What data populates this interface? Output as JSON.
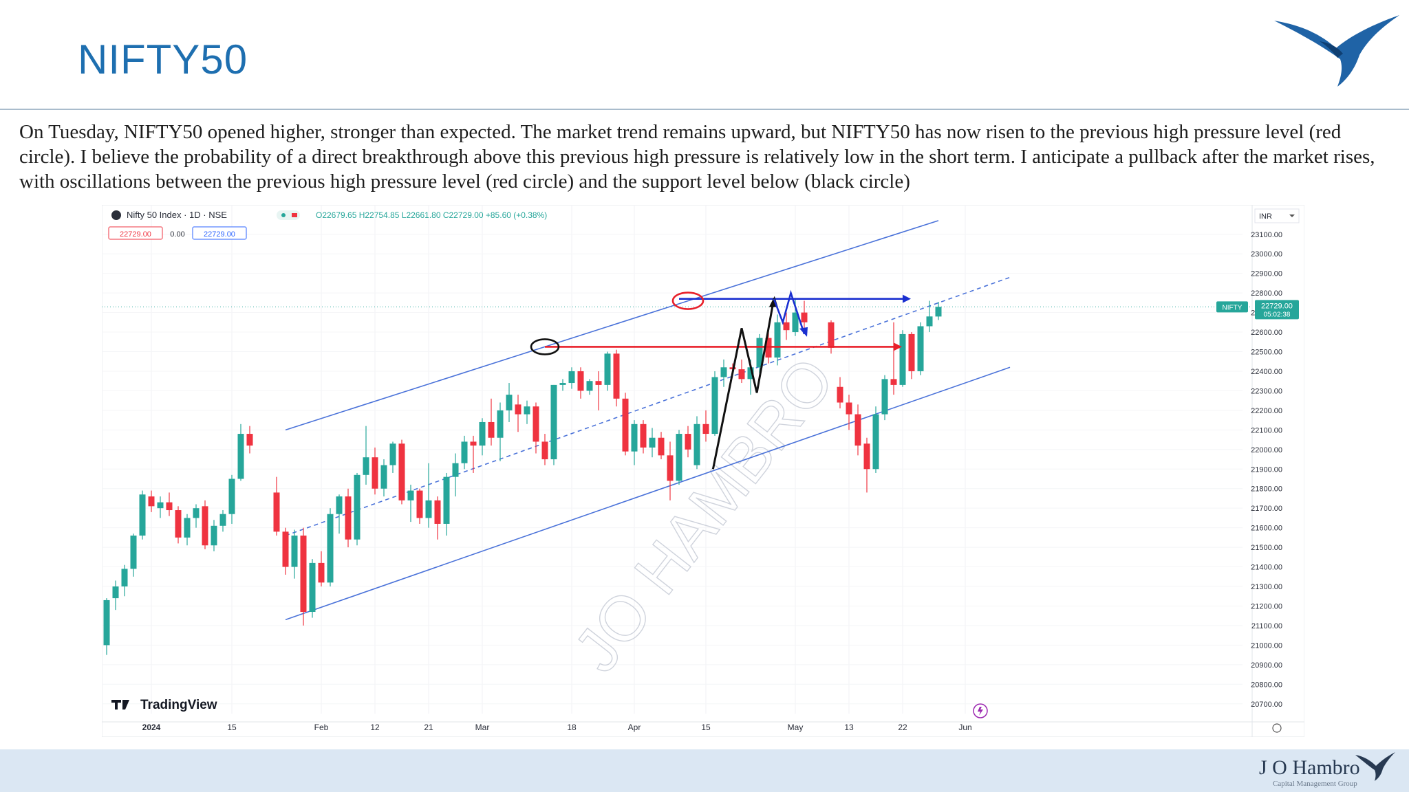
{
  "header": {
    "title": "NIFTY50",
    "description": "On Tuesday, NIFTY50 opened higher, stronger than expected. The market trend remains upward, but NIFTY50 has now risen to the previous high pressure level (red circle). I believe the probability of a direct breakthrough above this previous high pressure is relatively low in the short term. I anticipate a pullback after the market rises, with oscillations between the previous high pressure level (red circle) and the support level below (black circle)"
  },
  "footer": {
    "brand": "J O Hambro",
    "subtitle": "Capital Management Group"
  },
  "colors": {
    "up": "#26a69a",
    "down": "#ef3340",
    "channel": "#4a72d9",
    "resistance": "#e8202a",
    "target": "#1a2fd0",
    "title": "#1e6fb0"
  },
  "chart_data": {
    "type": "candlestick",
    "symbol_line": "Nifty 50 Index · 1D · NSE",
    "ohlc_line": "O22679.65 H22754.85 L22661.80 C22729.00 +85.60 (+0.38%)",
    "price_box_left": "22729.00",
    "price_box_mid": "0.00",
    "price_box_right": "22729.00",
    "currency": "INR",
    "watermark": "JO HAMBRO",
    "brand": "TradingView",
    "last_price_label": "NIFTY",
    "last_price": "22729.00",
    "countdown": "05:02:38",
    "ylim": [
      20650,
      23180
    ],
    "y_ticks": [
      "23100.00",
      "23000.00",
      "22900.00",
      "22800.00",
      "22700.00",
      "22600.00",
      "22500.00",
      "22400.00",
      "22300.00",
      "22200.00",
      "22100.00",
      "22000.00",
      "21900.00",
      "21800.00",
      "21700.00",
      "21600.00",
      "21500.00",
      "21400.00",
      "21300.00",
      "21200.00",
      "21100.00",
      "21000.00",
      "20900.00",
      "20800.00",
      "20700.00"
    ],
    "x_ticks": [
      {
        "label": "2024",
        "i": 5
      },
      {
        "label": "15",
        "i": 14
      },
      {
        "label": "Feb",
        "i": 24
      },
      {
        "label": "12",
        "i": 30
      },
      {
        "label": "21",
        "i": 36
      },
      {
        "label": "Mar",
        "i": 42
      },
      {
        "label": "18",
        "i": 52
      },
      {
        "label": "Apr",
        "i": 59
      },
      {
        "label": "15",
        "i": 67
      },
      {
        "label": "May",
        "i": 77
      },
      {
        "label": "13",
        "i": 83
      },
      {
        "label": "22",
        "i": 89
      },
      {
        "label": "Jun",
        "i": 96
      }
    ],
    "candles": [
      [
        21000,
        21240,
        20950,
        21230
      ],
      [
        21240,
        21330,
        21180,
        21300
      ],
      [
        21300,
        21410,
        21250,
        21390
      ],
      [
        21390,
        21570,
        21350,
        21560
      ],
      [
        21560,
        21790,
        21540,
        21770
      ],
      [
        21760,
        21790,
        21680,
        21710
      ],
      [
        21700,
        21760,
        21650,
        21730
      ],
      [
        21730,
        21780,
        21660,
        21690
      ],
      [
        21690,
        21710,
        21520,
        21550
      ],
      [
        21550,
        21670,
        21510,
        21650
      ],
      [
        21650,
        21720,
        21600,
        21700
      ],
      [
        21710,
        21740,
        21490,
        21510
      ],
      [
        21510,
        21640,
        21480,
        21610
      ],
      [
        21610,
        21690,
        21580,
        21670
      ],
      [
        21670,
        21870,
        21620,
        21850
      ],
      [
        21850,
        22130,
        21840,
        22080
      ],
      [
        22080,
        22120,
        21980,
        22020
      ],
      [
        21780,
        21860,
        21560,
        21580
      ],
      [
        21580,
        21600,
        21360,
        21400
      ],
      [
        21400,
        21590,
        21340,
        21560
      ],
      [
        21560,
        21600,
        21100,
        21170
      ],
      [
        21170,
        21440,
        21140,
        21420
      ],
      [
        21420,
        21480,
        21300,
        21320
      ],
      [
        21320,
        21700,
        21300,
        21670
      ],
      [
        21670,
        21770,
        21570,
        21760
      ],
      [
        21760,
        21800,
        21500,
        21540
      ],
      [
        21540,
        21880,
        21510,
        21870
      ],
      [
        21870,
        22120,
        21820,
        21960
      ],
      [
        21960,
        22010,
        21770,
        21800
      ],
      [
        21800,
        21950,
        21760,
        21920
      ],
      [
        21920,
        22040,
        21880,
        22030
      ],
      [
        22030,
        22050,
        21720,
        21740
      ],
      [
        21740,
        21820,
        21630,
        21790
      ],
      [
        21790,
        21800,
        21620,
        21650
      ],
      [
        21650,
        21930,
        21600,
        21740
      ],
      [
        21740,
        21760,
        21540,
        21620
      ],
      [
        21620,
        21880,
        21560,
        21860
      ],
      [
        21860,
        21980,
        21760,
        21930
      ],
      [
        21930,
        22070,
        21900,
        22040
      ],
      [
        22040,
        22070,
        21880,
        22020
      ],
      [
        22020,
        22160,
        21970,
        22140
      ],
      [
        22140,
        22260,
        22020,
        22060
      ],
      [
        22060,
        22240,
        21940,
        22200
      ],
      [
        22200,
        22340,
        22140,
        22280
      ],
      [
        22230,
        22280,
        22090,
        22180
      ],
      [
        22180,
        22250,
        22130,
        22220
      ],
      [
        22220,
        22240,
        21980,
        22040
      ],
      [
        22040,
        22080,
        21920,
        21950
      ],
      [
        21950,
        22330,
        21920,
        22330
      ],
      [
        22330,
        22360,
        22300,
        22340
      ],
      [
        22340,
        22420,
        22310,
        22400
      ],
      [
        22400,
        22420,
        22260,
        22300
      ],
      [
        22300,
        22360,
        22280,
        22350
      ],
      [
        22350,
        22400,
        22200,
        22330
      ],
      [
        22330,
        22500,
        22300,
        22490
      ],
      [
        22490,
        22510,
        22220,
        22260
      ],
      [
        22260,
        22290,
        21970,
        21990
      ],
      [
        21990,
        22150,
        21920,
        22130
      ],
      [
        22130,
        22150,
        21980,
        22010
      ],
      [
        22010,
        22110,
        21960,
        22060
      ],
      [
        22060,
        22090,
        21950,
        21970
      ],
      [
        21970,
        22040,
        21740,
        21840
      ],
      [
        21840,
        22100,
        21820,
        22080
      ],
      [
        22080,
        22120,
        21960,
        22000
      ],
      [
        21920,
        22170,
        21900,
        22130
      ],
      [
        22130,
        22200,
        22040,
        22080
      ],
      [
        22080,
        22400,
        22070,
        22370
      ],
      [
        22370,
        22460,
        22320,
        22420
      ],
      [
        22420,
        22440,
        22380,
        22410
      ],
      [
        22410,
        22460,
        22340,
        22360
      ],
      [
        22360,
        22460,
        22280,
        22420
      ],
      [
        22420,
        22590,
        22390,
        22570
      ],
      [
        22570,
        22620,
        22440,
        22470
      ],
      [
        22470,
        22690,
        22430,
        22650
      ],
      [
        22650,
        22700,
        22560,
        22610
      ],
      [
        22600,
        22770,
        22580,
        22700
      ],
      [
        22700,
        22760,
        22610,
        22650
      ],
      [
        22650,
        22660,
        22490,
        22520
      ],
      [
        22320,
        22370,
        22210,
        22240
      ],
      [
        22240,
        22280,
        22100,
        22180
      ],
      [
        22180,
        22230,
        21970,
        22020
      ],
      [
        22030,
        22060,
        21780,
        21900
      ],
      [
        21900,
        22220,
        21880,
        22180
      ],
      [
        22180,
        22380,
        22150,
        22360
      ],
      [
        22360,
        22650,
        22280,
        22330
      ],
      [
        22330,
        22610,
        22320,
        22590
      ],
      [
        22590,
        22600,
        22360,
        22400
      ],
      [
        22400,
        22650,
        22380,
        22630
      ],
      [
        22630,
        22760,
        22600,
        22680
      ],
      [
        22679.65,
        22754.85,
        22661.8,
        22729.0
      ]
    ],
    "candle_index_map": [
      0,
      1,
      2,
      3,
      4,
      5,
      6,
      7,
      8,
      9,
      10,
      11,
      12,
      13,
      14,
      15,
      16,
      19,
      20,
      21,
      22,
      23,
      24,
      25,
      26,
      27,
      28,
      29,
      30,
      31,
      32,
      33,
      34,
      35,
      36,
      37,
      38,
      39,
      40,
      41,
      42,
      43,
      44,
      45,
      46,
      47,
      48,
      49,
      50,
      51,
      52,
      53,
      54,
      55,
      56,
      57,
      58,
      59,
      60,
      61,
      62,
      63,
      64,
      65,
      66,
      67,
      68,
      69,
      70,
      71,
      72,
      73,
      74,
      75,
      76,
      77,
      78,
      81,
      82,
      83,
      84,
      85,
      86,
      87,
      88,
      89,
      90,
      91,
      92,
      93,
      94
    ],
    "annotations": {
      "channel_upper": [
        [
          20,
          22100
        ],
        [
          93,
          23170
        ]
      ],
      "channel_lower": [
        [
          20,
          21130
        ],
        [
          101,
          22420
        ]
      ],
      "channel_mid": [
        [
          20,
          21560
        ],
        [
          101,
          22880
        ]
      ],
      "resistance_line": {
        "y": 22525,
        "i_start": 49,
        "i_end": 88
      },
      "target_line": {
        "y": 22770,
        "i_start": 64,
        "i_end": 89
      },
      "red_circle": {
        "i": 65,
        "y": 22760
      },
      "black_circle": {
        "i": 49,
        "y": 22525
      },
      "black_path": [
        [
          67.8,
          21900
        ],
        [
          71.0,
          22620
        ],
        [
          72.7,
          22290
        ],
        [
          74.6,
          22770
        ]
      ],
      "blue_path": [
        [
          74.6,
          22770
        ],
        [
          75.6,
          22650
        ],
        [
          76.5,
          22800
        ],
        [
          78.0,
          22590
        ]
      ]
    }
  }
}
